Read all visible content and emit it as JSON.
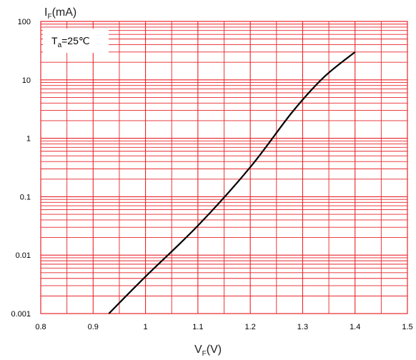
{
  "chart_data": {
    "type": "line",
    "x_axis": {
      "label_main": "V",
      "label_sub": "F",
      "label_unit": "(V)",
      "min": 0.8,
      "max": 1.5,
      "ticks": [
        "0.8",
        "0.9",
        "1",
        "1.1",
        "1.2",
        "1.3",
        "1.4",
        "1.5"
      ]
    },
    "y_axis": {
      "label_main": "I",
      "label_sub": "F",
      "label_unit": "(mA)",
      "scale": "log",
      "min": 0.001,
      "max": 100,
      "ticks": [
        "0.001",
        "0.01",
        "0.1",
        "1",
        "10",
        "100"
      ]
    },
    "annotation": {
      "main": "T",
      "sub": "a",
      "rest": "=25℃"
    },
    "grid": true,
    "colors": {
      "grid": "#e8252a",
      "line": "#000000",
      "frame": "#e8252a"
    },
    "series": [
      {
        "x": [
          0.93,
          1.0,
          1.1,
          1.2,
          1.28,
          1.34,
          1.4
        ],
        "y": [
          0.001,
          0.0043,
          0.032,
          0.32,
          2.8,
          11,
          30
        ]
      }
    ]
  }
}
